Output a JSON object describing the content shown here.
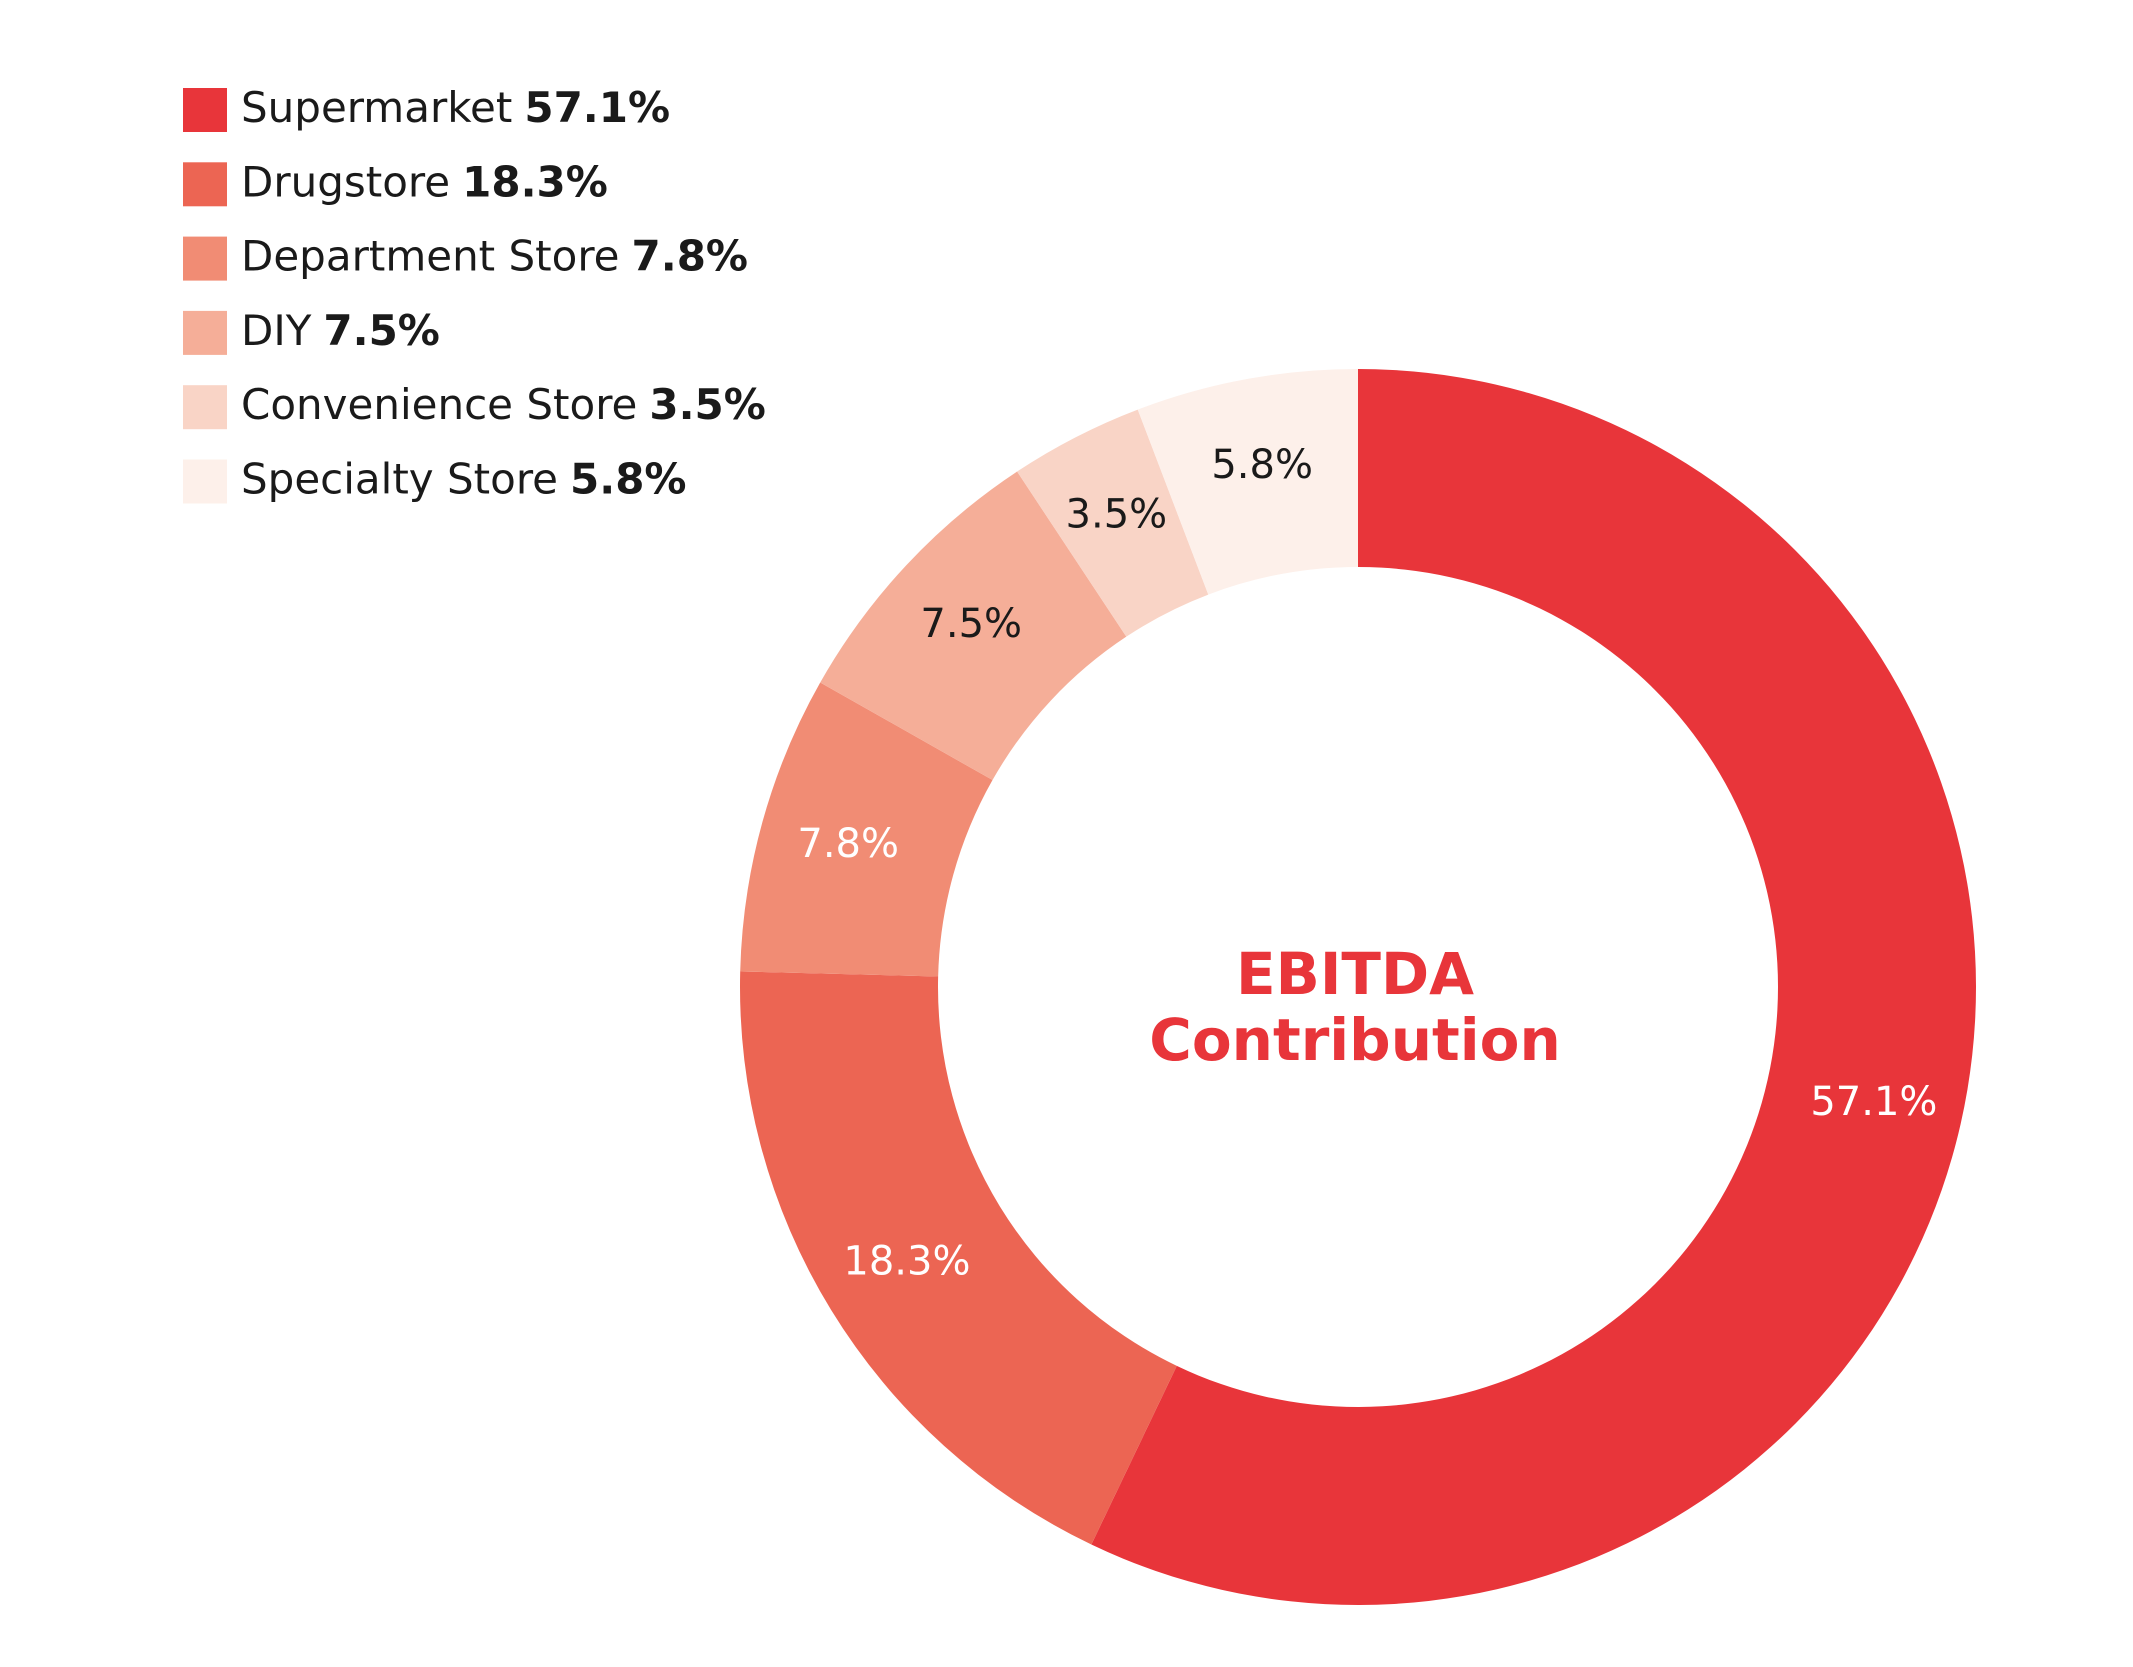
{
  "chart_data": {
    "type": "donut",
    "title": [
      "EBITDA",
      "Contribution"
    ],
    "categories": [
      "Supermarket",
      "Drugstore",
      "Department Store",
      "DIY",
      "Convenience Store",
      "Specialty Store"
    ],
    "values": [
      57.1,
      18.3,
      7.8,
      7.5,
      3.5,
      5.8
    ],
    "value_labels": [
      "57.1%",
      "18.3%",
      "7.8%",
      "7.5%",
      "3.5%",
      "5.8%"
    ],
    "colors": [
      "#e8353a",
      "#ec6553",
      "#f18c74",
      "#f5ae98",
      "#f9d4c6",
      "#fdf0ea"
    ],
    "label_colors": [
      "#ffffff",
      "#ffffff",
      "#ffffff",
      "#1a1a1a",
      "#1a1a1a",
      "#1a1a1a"
    ],
    "title_color": "#e8353a",
    "legend": "top-left"
  }
}
